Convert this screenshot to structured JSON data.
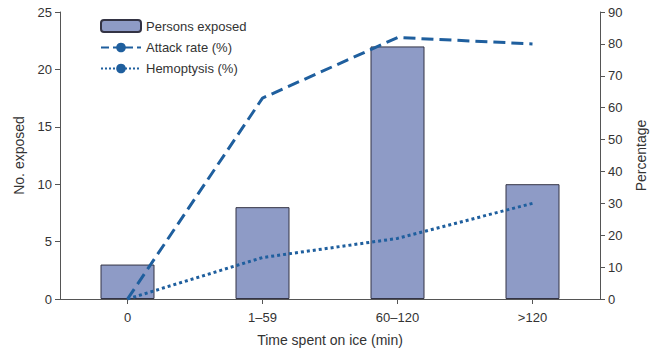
{
  "chart_data": {
    "type": "bar",
    "x_label": "Time spent on ice (min)",
    "y_label": "No. exposed",
    "y2_label": "Percentage",
    "categories": [
      "0",
      "1–59",
      "60–120",
      ">120"
    ],
    "series": [
      {
        "name": "Persons exposed",
        "type": "bar",
        "color": "#8e9bc6",
        "values": [
          3,
          8,
          22,
          10
        ]
      },
      {
        "name": "Attack rate (%)",
        "type": "line",
        "color": "#1f5f9e",
        "line_style": "dashed",
        "axis": "y2",
        "values": [
          0,
          63,
          82,
          80
        ]
      },
      {
        "name": "Hemoptysis (%)",
        "type": "line",
        "color": "#1f5f9e",
        "line_style": "dotted",
        "axis": "y2",
        "values": [
          0,
          13,
          19,
          30
        ]
      }
    ],
    "ylim": [
      0,
      25
    ],
    "yticks": [
      0,
      5,
      10,
      15,
      20,
      25
    ],
    "y2lim": [
      0,
      90
    ],
    "y2ticks": [
      0,
      10,
      20,
      30,
      40,
      50,
      60,
      70,
      80,
      90
    ],
    "legend": "upper left",
    "grid": false
  }
}
